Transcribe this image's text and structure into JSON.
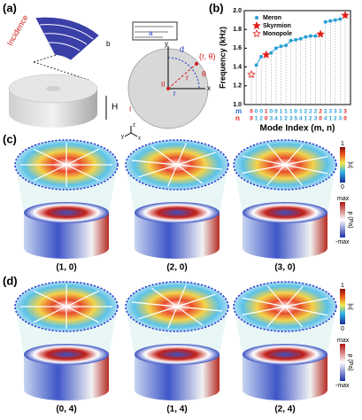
{
  "figure": {
    "panel_labels": [
      "(a)",
      "(b)",
      "(c)",
      "(d)"
    ],
    "schematic": {
      "incidence": "Incidence",
      "b": "b",
      "a": "a",
      "d": "d",
      "h": "H",
      "point": "(r, θ)",
      "r": "r",
      "theta": "θ",
      "r0": "r",
      "region1": "I",
      "region2": "II",
      "x": "x",
      "y": "y",
      "z": "z"
    },
    "c_modes": [
      "(1, 0)",
      "(2, 0)",
      "(3, 0)"
    ],
    "d_modes": [
      "(0, 4)",
      "(1, 4)",
      "(2, 4)"
    ],
    "colorbar_u": {
      "label": "|u|",
      "top": "1",
      "bottom": "0"
    },
    "colorbar_p": {
      "label": "p (Pa)",
      "top": "max",
      "bottom": "-max"
    }
  },
  "chart_data": {
    "type": "line",
    "xlabel": "Mode Index (m, n)",
    "ylabel": "Frequency (kHz)",
    "index_rows": [
      {
        "name": "m",
        "values": [
          "0",
          "0",
          "0",
          "1",
          "0",
          "0",
          "1",
          "1",
          "1",
          "0",
          "1",
          "2",
          "2",
          "2",
          "2",
          "2",
          "3",
          "3",
          "3",
          "3"
        ]
      },
      {
        "name": "n",
        "values": [
          "0",
          "1",
          "2",
          "0",
          "3",
          "4",
          "1",
          "2",
          "3",
          "5",
          "4",
          "1",
          "2",
          "3",
          "0",
          "4",
          "1",
          "2",
          "3",
          "0"
        ]
      }
    ],
    "ylim": [
      1.0,
      2.0
    ],
    "yticks": [
      {
        "value": 1.0,
        "label": "1.0"
      },
      1.2,
      1.4,
      1.6,
      1.8,
      {
        "value": 2.0,
        "label": "2.0"
      }
    ],
    "legend": "top-left",
    "series": [
      {
        "name": "Meron",
        "color": "#2a9fd6",
        "marker": "circle",
        "values": [
          null,
          1.42,
          1.51,
          null,
          1.55,
          1.6,
          1.62,
          1.63,
          1.68,
          1.69,
          1.7,
          1.72,
          1.73,
          1.73,
          null,
          1.88,
          1.89,
          1.9,
          1.91,
          null
        ]
      },
      {
        "name": "Skyrmion",
        "color": "#e0201b",
        "marker": "star",
        "values": [
          null,
          null,
          null,
          1.53,
          null,
          null,
          null,
          null,
          null,
          null,
          null,
          null,
          null,
          null,
          1.75,
          null,
          null,
          null,
          null,
          1.95
        ]
      },
      {
        "name": "Monopole",
        "color": "#e0201b",
        "marker": "open-star",
        "values": [
          1.32,
          null,
          null,
          null,
          null,
          null,
          null,
          null,
          null,
          null,
          null,
          null,
          null,
          null,
          null,
          null,
          null,
          null,
          null,
          null
        ]
      }
    ]
  }
}
